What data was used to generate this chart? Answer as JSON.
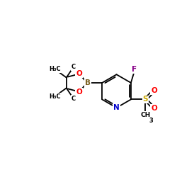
{
  "background": "#ffffff",
  "figure_size": [
    2.5,
    2.5
  ],
  "dpi": 100,
  "bond_color": "#000000",
  "bond_lw": 1.3,
  "atom_colors": {
    "N": "#0000cc",
    "O": "#ff0000",
    "F": "#880088",
    "B": "#7a6020",
    "S": "#ccaa00",
    "C": "#000000"
  },
  "font_size": 7.5,
  "font_size_sub": 5.5,
  "xlim": [
    0,
    10
  ],
  "ylim": [
    2,
    8.5
  ]
}
